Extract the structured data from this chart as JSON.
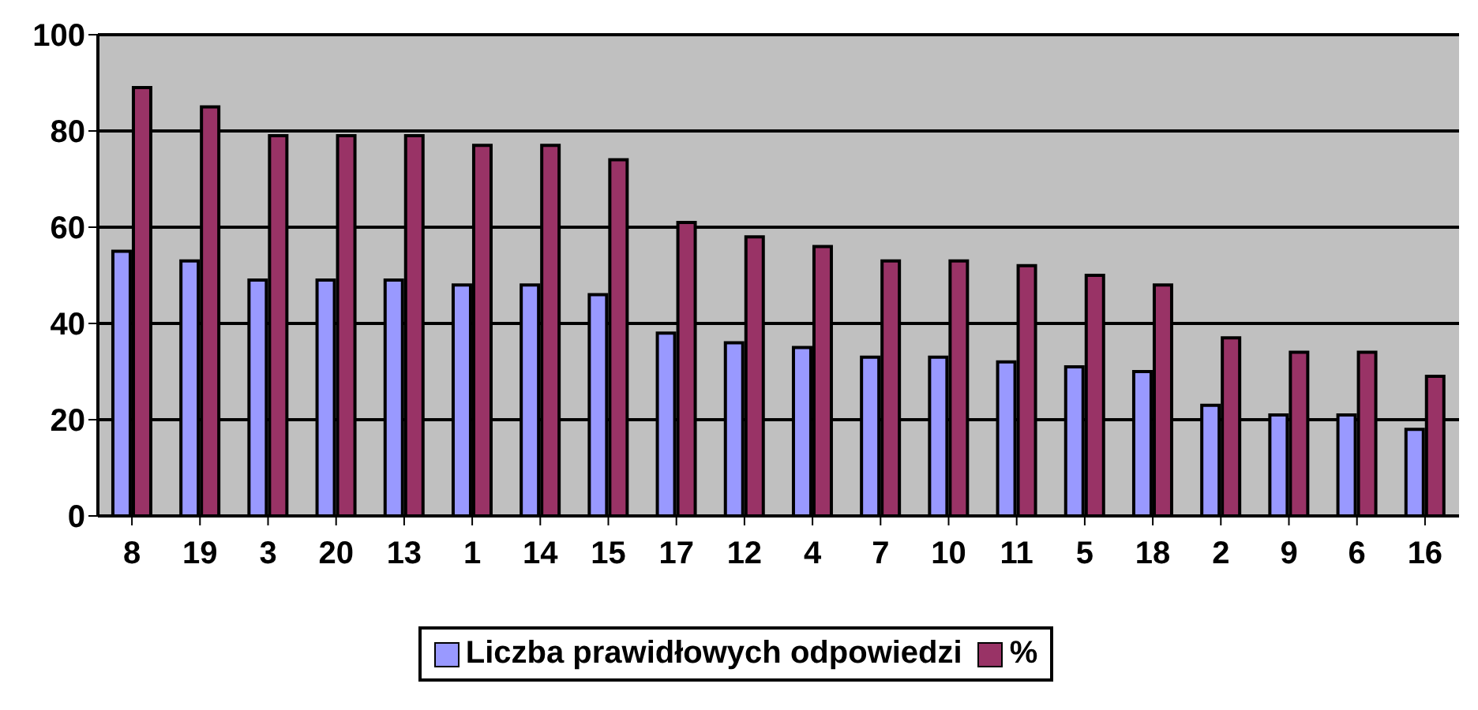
{
  "chart_data": {
    "type": "bar",
    "categories": [
      "8",
      "19",
      "3",
      "20",
      "13",
      "1",
      "14",
      "15",
      "17",
      "12",
      "4",
      "7",
      "10",
      "11",
      "5",
      "18",
      "2",
      "9",
      "6",
      "16"
    ],
    "series": [
      {
        "name": "Liczba prawidłowych odpowiedzi",
        "color": "#9999ff",
        "values": [
          55,
          53,
          49,
          49,
          49,
          48,
          48,
          46,
          38,
          36,
          35,
          33,
          33,
          32,
          31,
          30,
          23,
          21,
          21,
          18
        ]
      },
      {
        "name": "%",
        "color": "#993366",
        "values": [
          89,
          85,
          79,
          79,
          79,
          77,
          77,
          74,
          61,
          58,
          56,
          53,
          53,
          52,
          50,
          48,
          37,
          34,
          34,
          29
        ]
      }
    ],
    "ylim": [
      0,
      100
    ],
    "yticks": [
      0,
      20,
      40,
      60,
      80,
      100
    ],
    "grid": "y",
    "legend": "bottom"
  }
}
